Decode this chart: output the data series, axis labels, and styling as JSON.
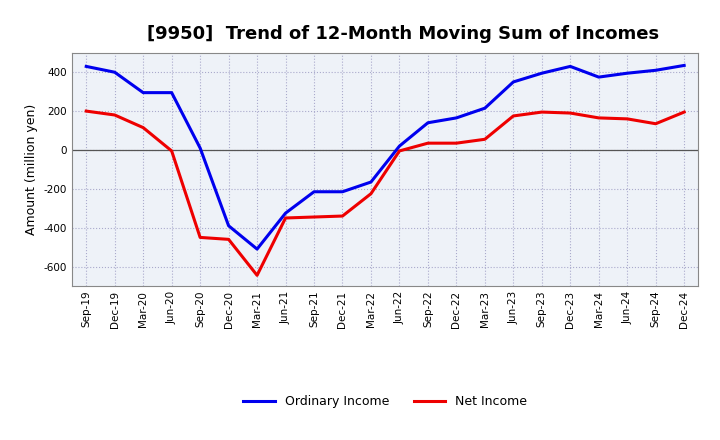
{
  "title": "[9950]  Trend of 12-Month Moving Sum of Incomes",
  "ylabel": "Amount (million yen)",
  "background_color": "#ffffff",
  "plot_bg_color": "#eef2f8",
  "grid_color": "#aaaacc",
  "x_labels": [
    "Sep-19",
    "Dec-19",
    "Mar-20",
    "Jun-20",
    "Sep-20",
    "Dec-20",
    "Mar-21",
    "Jun-21",
    "Sep-21",
    "Dec-21",
    "Mar-22",
    "Jun-22",
    "Sep-22",
    "Dec-22",
    "Mar-23",
    "Jun-23",
    "Sep-23",
    "Dec-23",
    "Mar-24",
    "Jun-24",
    "Sep-24",
    "Dec-24"
  ],
  "ordinary_income": [
    430,
    400,
    295,
    295,
    10,
    -390,
    -510,
    -325,
    -215,
    -215,
    -165,
    20,
    140,
    165,
    215,
    350,
    395,
    430,
    375,
    395,
    410,
    435
  ],
  "net_income": [
    200,
    180,
    115,
    -5,
    -450,
    -460,
    -645,
    -350,
    -345,
    -340,
    -225,
    -5,
    35,
    35,
    55,
    175,
    195,
    190,
    165,
    160,
    135,
    195
  ],
  "ylim": [
    -700,
    500
  ],
  "yticks": [
    -600,
    -400,
    -200,
    0,
    200,
    400
  ],
  "ordinary_color": "#0000ee",
  "net_color": "#ee0000",
  "line_width": 2.2,
  "title_fontsize": 13,
  "tick_fontsize": 7.5,
  "ylabel_fontsize": 9,
  "legend_fontsize": 9
}
